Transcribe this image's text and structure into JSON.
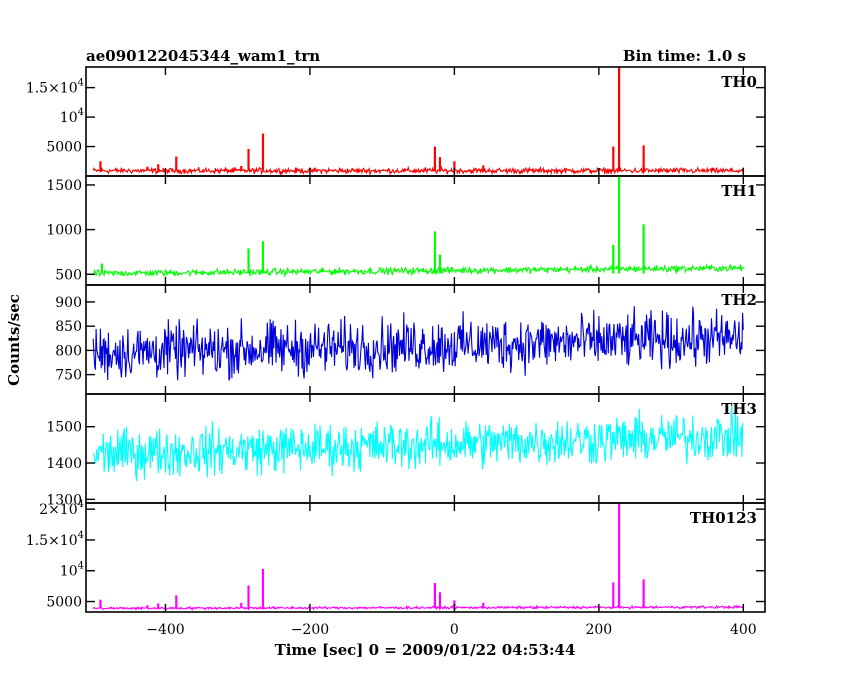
{
  "header": {
    "left_title": "ae090122045344_wam1_trn",
    "right_title": "Bin time: 1.0 s"
  },
  "chart_data": {
    "type": "line",
    "title": "ae090122045344_wam1_trn",
    "bin_time": "Bin time: 1.0 s",
    "xlabel": "Time [sec] 0 = 2009/01/22 04:53:44",
    "ylabel": "Counts/sec",
    "xlim": [
      -510,
      430
    ],
    "xticks": [
      -400,
      -200,
      0,
      200,
      400
    ],
    "xtick_labels": [
      "−400",
      "−200",
      "0",
      "200",
      "400"
    ],
    "panels": [
      {
        "name": "TH0",
        "color": "#ff0000",
        "ylim": [
          0,
          18500
        ],
        "yticks": [
          5000,
          10000,
          15000
        ],
        "ytick_labels": [
          {
            "mantissa": "5000",
            "exp": ""
          },
          {
            "mantissa": "10",
            "exp": "4"
          },
          {
            "mantissa": "1.5×10",
            "exp": "4"
          }
        ],
        "baseline": 900,
        "noise": 350,
        "drift": 0,
        "spikes": [
          [
            -490,
            2500
          ],
          [
            -425,
            1600
          ],
          [
            -410,
            2000
          ],
          [
            -385,
            3300
          ],
          [
            -295,
            1700
          ],
          [
            -285,
            4600
          ],
          [
            -265,
            7200
          ],
          [
            -27,
            5000
          ],
          [
            -20,
            3200
          ],
          [
            0,
            2500
          ],
          [
            40,
            1800
          ],
          [
            220,
            5000
          ],
          [
            228,
            18500
          ],
          [
            262,
            5200
          ]
        ]
      },
      {
        "name": "TH1",
        "color": "#00ff00",
        "ylim": [
          380,
          1600
        ],
        "yticks": [
          500,
          1000,
          1500
        ],
        "ytick_labels": [
          {
            "mantissa": "500",
            "exp": ""
          },
          {
            "mantissa": "1000",
            "exp": ""
          },
          {
            "mantissa": "1500",
            "exp": ""
          }
        ],
        "baseline": 510,
        "noise": 28,
        "drift": 60,
        "spikes": [
          [
            -488,
            620
          ],
          [
            -285,
            790
          ],
          [
            -265,
            870
          ],
          [
            -27,
            980
          ],
          [
            -20,
            720
          ],
          [
            220,
            830
          ],
          [
            228,
            1600
          ],
          [
            262,
            1060
          ]
        ]
      },
      {
        "name": "TH2",
        "color": "#0000dd",
        "ylim": [
          710,
          935
        ],
        "yticks": [
          750,
          800,
          850,
          900
        ],
        "ytick_labels": [
          {
            "mantissa": "750",
            "exp": ""
          },
          {
            "mantissa": "800",
            "exp": ""
          },
          {
            "mantissa": "850",
            "exp": ""
          },
          {
            "mantissa": "900",
            "exp": ""
          }
        ],
        "baseline": 795,
        "noise": 42,
        "drift": 30,
        "spikes": []
      },
      {
        "name": "TH3",
        "color": "#00ffff",
        "ylim": [
          1290,
          1590
        ],
        "yticks": [
          1300,
          1400,
          1500
        ],
        "ytick_labels": [
          {
            "mantissa": "1300",
            "exp": ""
          },
          {
            "mantissa": "1400",
            "exp": ""
          },
          {
            "mantissa": "1500",
            "exp": ""
          }
        ],
        "baseline": 1425,
        "noise": 50,
        "drift": 50,
        "spikes": []
      },
      {
        "name": "TH0123",
        "color": "#ff00ff",
        "ylim": [
          3300,
          21000
        ],
        "yticks": [
          5000,
          10000,
          15000,
          20000
        ],
        "ytick_labels": [
          {
            "mantissa": "5000",
            "exp": ""
          },
          {
            "mantissa": "10",
            "exp": "4"
          },
          {
            "mantissa": "1.5×10",
            "exp": "4"
          },
          {
            "mantissa": "2×10",
            "exp": "4"
          }
        ],
        "baseline": 3900,
        "noise": 150,
        "drift": 200,
        "spikes": [
          [
            -490,
            5300
          ],
          [
            -425,
            4400
          ],
          [
            -410,
            4700
          ],
          [
            -385,
            6000
          ],
          [
            -295,
            4800
          ],
          [
            -285,
            7600
          ],
          [
            -265,
            10300
          ],
          [
            -27,
            8000
          ],
          [
            -20,
            6500
          ],
          [
            0,
            5200
          ],
          [
            40,
            4800
          ],
          [
            220,
            8100
          ],
          [
            228,
            21000
          ],
          [
            262,
            8600
          ]
        ]
      }
    ]
  }
}
